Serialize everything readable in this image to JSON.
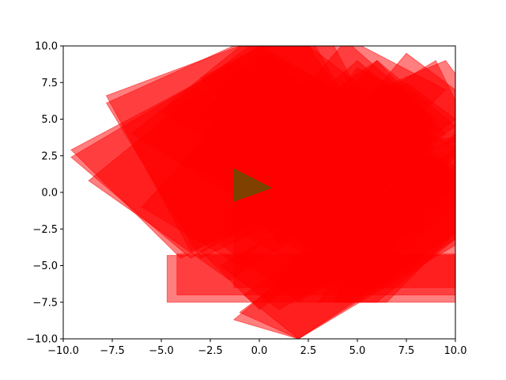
{
  "chart_data": {
    "type": "polygon",
    "title": "",
    "xlabel": "",
    "ylabel": "",
    "xlim": [
      -10,
      10
    ],
    "ylim": [
      -10,
      10
    ],
    "grid": false,
    "xticks": [
      "−10.0",
      "−7.5",
      "−5.0",
      "−2.5",
      "0.0",
      "2.5",
      "5.0",
      "7.5",
      "10.0"
    ],
    "yticks": [
      "−10.0",
      "−7.5",
      "−5.0",
      "−2.5",
      "0.0",
      "2.5",
      "5.0",
      "7.5",
      "10.0"
    ],
    "colors": {
      "red_fill": "#ff0000",
      "green_fill": "#008000",
      "axis": "#000000"
    },
    "series": [
      {
        "color": "#ff0000",
        "alpha": 0.5,
        "polygons": [
          [
            [
              -4.7,
              -4.3
            ],
            [
              12,
              -4.3
            ],
            [
              12,
              -7.5
            ],
            [
              -4.7,
              -7.5
            ]
          ],
          [
            [
              -4.2,
              -4.2
            ],
            [
              12,
              -4.2
            ],
            [
              12,
              -7.0
            ],
            [
              -4.2,
              -7.0
            ]
          ],
          [
            [
              -1.3,
              3.7
            ],
            [
              12,
              3.7
            ],
            [
              12,
              -6.5
            ],
            [
              -1.3,
              -6.5
            ]
          ],
          [
            [
              -9.6,
              2.9
            ],
            [
              -1.0,
              9.0
            ],
            [
              4.0,
              1.0
            ],
            [
              -4.0,
              -4.5
            ]
          ],
          [
            [
              -9.6,
              2.4
            ],
            [
              0.0,
              10.0
            ],
            [
              6.0,
              2.5
            ],
            [
              -3.5,
              -4.5
            ]
          ],
          [
            [
              -8.7,
              0.8
            ],
            [
              -3.0,
              7.0
            ],
            [
              5.5,
              0.0
            ],
            [
              -1.5,
              -6.0
            ]
          ],
          [
            [
              -7.8,
              6.6
            ],
            [
              3.0,
              12.0
            ],
            [
              7.0,
              2.0
            ],
            [
              -3.5,
              -4.0
            ]
          ],
          [
            [
              -7.8,
              6.1
            ],
            [
              2.0,
              12.0
            ],
            [
              6.5,
              1.5
            ],
            [
              -3.0,
              -4.5
            ]
          ],
          [
            [
              -3.0,
              7.8
            ],
            [
              3.0,
              12.0
            ],
            [
              9.0,
              5.0
            ],
            [
              2.5,
              -1.0
            ]
          ],
          [
            [
              -2.8,
              5.5
            ],
            [
              1.5,
              12.0
            ],
            [
              6.5,
              2.0
            ],
            [
              1.0,
              -3.5
            ]
          ],
          [
            [
              -2.0,
              -2.0
            ],
            [
              6.0,
              9.0
            ],
            [
              9.5,
              4.0
            ],
            [
              2.0,
              -5.0
            ]
          ],
          [
            [
              -1.5,
              0.5
            ],
            [
              9.0,
              9.0
            ],
            [
              11.0,
              3.5
            ],
            [
              2.5,
              -4.0
            ]
          ],
          [
            [
              -0.8,
              -7.0
            ],
            [
              9.0,
              2.5
            ],
            [
              12.0,
              -1.0
            ],
            [
              2.0,
              -10.0
            ]
          ],
          [
            [
              -1.0,
              -8.2
            ],
            [
              10.0,
              3.0
            ],
            [
              12.0,
              -2.0
            ],
            [
              2.0,
              -10.0
            ]
          ],
          [
            [
              -1.3,
              -8.7
            ],
            [
              10.0,
              4.0
            ],
            [
              12.0,
              -1.5
            ],
            [
              2.0,
              -10.0
            ]
          ],
          [
            [
              -3.0,
              -4.0
            ],
            [
              6.5,
              4.0
            ],
            [
              9.0,
              1.0
            ],
            [
              0.0,
              -8.0
            ]
          ],
          [
            [
              -2.0,
              1.0
            ],
            [
              5.0,
              9.0
            ],
            [
              9.0,
              4.5
            ],
            [
              1.0,
              -3.5
            ]
          ],
          [
            [
              0.0,
              3.5
            ],
            [
              6.0,
              9.0
            ],
            [
              10.0,
              4.5
            ],
            [
              3.0,
              -1.5
            ]
          ],
          [
            [
              1.5,
              0.0
            ],
            [
              7.5,
              9.5
            ],
            [
              12.0,
              5.0
            ],
            [
              5.0,
              -4.0
            ]
          ],
          [
            [
              2.5,
              -2.5
            ],
            [
              7.5,
              5.0
            ],
            [
              12.0,
              1.5
            ],
            [
              6.0,
              -5.5
            ]
          ],
          [
            [
              3.0,
              -7.5
            ],
            [
              8.5,
              2.5
            ],
            [
              12.0,
              -1.0
            ],
            [
              6.0,
              -7.5
            ]
          ],
          [
            [
              3.8,
              -7.5
            ],
            [
              8.0,
              3.5
            ],
            [
              12.0,
              0.0
            ],
            [
              6.5,
              -7.5
            ]
          ],
          [
            [
              1.5,
              4.5
            ],
            [
              9.5,
              9.0
            ],
            [
              12.0,
              4.5
            ],
            [
              4.0,
              0.5
            ]
          ],
          [
            [
              -1.0,
              2.0
            ],
            [
              4.5,
              10.5
            ],
            [
              9.5,
              7.0
            ],
            [
              3.5,
              -1.0
            ]
          ],
          [
            [
              0.0,
              -1.5
            ],
            [
              5.5,
              6.0
            ],
            [
              9.0,
              3.0
            ],
            [
              3.5,
              -4.5
            ]
          ],
          [
            [
              1.0,
              -3.0
            ],
            [
              7.0,
              4.0
            ],
            [
              10.5,
              1.0
            ],
            [
              4.0,
              -6.0
            ]
          ],
          [
            [
              -2.0,
              -3.5
            ],
            [
              2.0,
              3.0
            ],
            [
              8.5,
              -2.0
            ],
            [
              2.0,
              -7.5
            ]
          ],
          [
            [
              -6.0,
              -1.0
            ],
            [
              -1.5,
              5.5
            ],
            [
              3.5,
              1.5
            ],
            [
              -1.0,
              -5.0
            ]
          ],
          [
            [
              -6.5,
              4.0
            ],
            [
              -0.5,
              10.5
            ],
            [
              4.5,
              6.5
            ],
            [
              -1.0,
              -0.5
            ]
          ],
          [
            [
              -5.0,
              5.5
            ],
            [
              1.0,
              11.5
            ],
            [
              5.5,
              7.0
            ],
            [
              0.5,
              1.5
            ]
          ],
          [
            [
              0.5,
              1.0
            ],
            [
              5.0,
              8.5
            ],
            [
              8.0,
              6.5
            ],
            [
              3.5,
              -1.0
            ]
          ],
          [
            [
              2.0,
              2.0
            ],
            [
              7.5,
              7.5
            ],
            [
              10.0,
              5.0
            ],
            [
              4.5,
              -0.5
            ]
          ],
          [
            [
              1.5,
              -1.5
            ],
            [
              6.0,
              5.5
            ],
            [
              8.5,
              3.5
            ],
            [
              4.0,
              -3.5
            ]
          ],
          [
            [
              -2.0,
              -5.0
            ],
            [
              4.5,
              0.0
            ],
            [
              7.0,
              -3.5
            ],
            [
              1.0,
              -8.0
            ]
          ],
          [
            [
              -4.0,
              2.0
            ],
            [
              0.5,
              9.5
            ],
            [
              4.0,
              7.0
            ],
            [
              -0.5,
              0.0
            ]
          ]
        ]
      },
      {
        "color": "#008000",
        "alpha": 0.5,
        "polygons": [
          [
            [
              -1.3,
              1.6
            ],
            [
              -1.3,
              -0.6
            ],
            [
              0.6,
              0.3
            ]
          ]
        ]
      }
    ]
  }
}
